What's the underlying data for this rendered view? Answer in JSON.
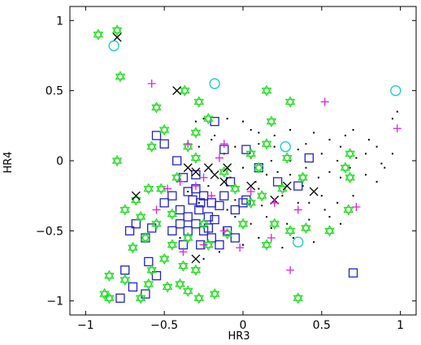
{
  "chart_data": {
    "type": "scatter",
    "title": "",
    "xlabel": "HR3",
    "ylabel": "HR4",
    "xlim": [
      -1.1,
      1.1
    ],
    "ylim": [
      -1.1,
      1.1
    ],
    "x_ticks": [
      -1,
      -0.5,
      0,
      0.5,
      1
    ],
    "x_tick_labels": [
      "−1",
      "−0.5",
      "0",
      "0.5",
      "1"
    ],
    "y_ticks": [
      -1,
      -0.5,
      0,
      0.5,
      1
    ],
    "y_tick_labels": [
      "−1",
      "−0.5",
      "0",
      "0.5",
      "1"
    ],
    "grid": false,
    "legend": "none",
    "series": [
      {
        "marker": "star",
        "color": "#22dd22",
        "points": [
          [
            -0.92,
            0.9
          ],
          [
            -0.8,
            0.93
          ],
          [
            -0.78,
            0.6
          ],
          [
            -0.55,
            0.38
          ],
          [
            -0.37,
            0.5
          ],
          [
            -0.28,
            0.42
          ],
          [
            -0.5,
            0.22
          ],
          [
            -0.3,
            0.2
          ],
          [
            -0.22,
            0.3
          ],
          [
            -0.58,
            0.1
          ],
          [
            -0.35,
            0.1
          ],
          [
            -0.8,
            0.0
          ],
          [
            -0.3,
            0.02
          ],
          [
            -0.42,
            -0.12
          ],
          [
            -0.6,
            -0.2
          ],
          [
            -0.68,
            -0.28
          ],
          [
            -0.52,
            -0.2
          ],
          [
            -0.75,
            -0.35
          ],
          [
            -0.65,
            -0.4
          ],
          [
            -0.45,
            -0.38
          ],
          [
            -0.55,
            -0.45
          ],
          [
            -0.62,
            -0.55
          ],
          [
            -0.7,
            -0.62
          ],
          [
            -0.45,
            -0.6
          ],
          [
            -0.5,
            -0.7
          ],
          [
            -0.38,
            -0.75
          ],
          [
            -0.3,
            -0.78
          ],
          [
            -0.22,
            -0.6
          ],
          [
            -0.85,
            -0.82
          ],
          [
            -0.75,
            -0.85
          ],
          [
            -0.6,
            -0.88
          ],
          [
            -0.48,
            -0.9
          ],
          [
            -0.4,
            -0.88
          ],
          [
            -0.88,
            -0.95
          ],
          [
            -0.85,
            -0.98
          ],
          [
            -0.65,
            -0.98
          ],
          [
            -0.35,
            -0.93
          ],
          [
            -0.28,
            -0.98
          ],
          [
            -0.18,
            -0.95
          ],
          [
            -0.58,
            -0.78
          ],
          [
            -0.35,
            -0.55
          ],
          [
            -0.25,
            -0.45
          ],
          [
            0.15,
            0.5
          ],
          [
            0.3,
            0.42
          ],
          [
            0.18,
            0.28
          ],
          [
            0.15,
            0.12
          ],
          [
            0.1,
            -0.05
          ],
          [
            0.12,
            -0.25
          ],
          [
            0.05,
            -0.3
          ],
          [
            0.25,
            -0.2
          ],
          [
            0.2,
            -0.45
          ],
          [
            0.3,
            -0.5
          ],
          [
            0.38,
            -0.12
          ],
          [
            0.28,
            0.02
          ],
          [
            0.05,
            0.05
          ],
          [
            -0.05,
            -0.2
          ],
          [
            0.68,
            0.05
          ],
          [
            0.68,
            -0.12
          ],
          [
            0.65,
            -0.05
          ],
          [
            0.55,
            -0.5
          ],
          [
            0.67,
            -0.35
          ],
          [
            0.4,
            -0.48
          ],
          [
            0.35,
            -0.98
          ],
          [
            0.0,
            -0.45
          ],
          [
            -0.1,
            -0.52
          ],
          [
            0.15,
            -0.6
          ],
          [
            -0.12,
            -0.08
          ]
        ]
      },
      {
        "marker": "square",
        "color": "#2222cc",
        "points": [
          [
            -0.55,
            0.18
          ],
          [
            -0.5,
            0.12
          ],
          [
            -0.42,
            0.0
          ],
          [
            -0.38,
            -0.12
          ],
          [
            -0.3,
            -0.2
          ],
          [
            -0.25,
            -0.25
          ],
          [
            -0.2,
            -0.3
          ],
          [
            -0.15,
            -0.32
          ],
          [
            -0.28,
            -0.35
          ],
          [
            -0.35,
            -0.4
          ],
          [
            -0.22,
            -0.4
          ],
          [
            -0.18,
            -0.42
          ],
          [
            -0.3,
            -0.45
          ],
          [
            -0.25,
            -0.5
          ],
          [
            -0.35,
            -0.5
          ],
          [
            -0.4,
            -0.45
          ],
          [
            -0.45,
            -0.5
          ],
          [
            -0.2,
            -0.55
          ],
          [
            -0.15,
            -0.6
          ],
          [
            -0.1,
            -0.5
          ],
          [
            -0.05,
            -0.35
          ],
          [
            0.0,
            -0.3
          ],
          [
            -0.08,
            -0.15
          ],
          [
            -0.12,
            0.08
          ],
          [
            0.02,
            0.08
          ],
          [
            0.42,
            0.02
          ],
          [
            0.35,
            -0.18
          ],
          [
            0.22,
            -0.15
          ],
          [
            0.1,
            -0.05
          ],
          [
            -0.58,
            -0.48
          ],
          [
            -0.62,
            -0.55
          ],
          [
            -0.68,
            -0.45
          ],
          [
            -0.72,
            -0.5
          ],
          [
            -0.6,
            -0.72
          ],
          [
            -0.75,
            -0.78
          ],
          [
            -0.55,
            -0.82
          ],
          [
            -0.7,
            -0.9
          ],
          [
            -0.62,
            -0.95
          ],
          [
            -0.78,
            -0.98
          ],
          [
            -0.05,
            -0.55
          ],
          [
            -0.5,
            -0.3
          ],
          [
            -0.4,
            -0.35
          ],
          [
            -0.32,
            -0.28
          ],
          [
            -0.27,
            -0.3
          ],
          [
            -0.12,
            -0.25
          ],
          [
            0.7,
            -0.8
          ],
          [
            -0.27,
            -0.6
          ],
          [
            -0.38,
            -0.6
          ],
          [
            -0.22,
            -0.48
          ],
          [
            -0.45,
            -0.25
          ],
          [
            -0.35,
            -0.22
          ],
          [
            -0.3,
            -0.1
          ],
          [
            0.02,
            -0.28
          ],
          [
            -0.18,
            0.28
          ]
        ]
      },
      {
        "marker": "cross",
        "color": "#000000",
        "points": [
          [
            -0.8,
            0.88
          ],
          [
            -0.42,
            0.5
          ],
          [
            -0.68,
            -0.25
          ],
          [
            -0.35,
            -0.05
          ],
          [
            -0.18,
            -0.1
          ],
          [
            -0.12,
            -0.15
          ],
          [
            0.05,
            -0.18
          ],
          [
            -0.1,
            -0.05
          ],
          [
            0.2,
            -0.28
          ],
          [
            0.28,
            -0.18
          ],
          [
            0.45,
            -0.22
          ],
          [
            -0.3,
            -0.7
          ],
          [
            -0.3,
            -0.08
          ],
          [
            -0.22,
            -0.05
          ]
        ]
      },
      {
        "marker": "plus",
        "color": "#dd22dd",
        "points": [
          [
            -0.58,
            0.55
          ],
          [
            0.52,
            0.42
          ],
          [
            0.98,
            0.23
          ],
          [
            -0.35,
            0.12
          ],
          [
            -0.15,
            0.02
          ],
          [
            -0.25,
            -0.12
          ],
          [
            -0.4,
            -0.15
          ],
          [
            -0.48,
            -0.2
          ],
          [
            -0.55,
            -0.35
          ],
          [
            -0.3,
            -0.18
          ],
          [
            -0.2,
            -0.25
          ],
          [
            0.05,
            -0.22
          ],
          [
            0.2,
            -0.3
          ],
          [
            0.35,
            -0.35
          ],
          [
            0.72,
            -0.33
          ],
          [
            0.18,
            -0.55
          ],
          [
            -0.02,
            -0.62
          ],
          [
            -0.12,
            -0.5
          ],
          [
            -0.25,
            -0.6
          ],
          [
            -0.38,
            -0.65
          ],
          [
            -0.12,
            0.12
          ],
          [
            0.3,
            -0.78
          ]
        ]
      },
      {
        "marker": "circle",
        "color": "#22cccc",
        "points": [
          [
            -0.82,
            0.82
          ],
          [
            -0.18,
            0.55
          ],
          [
            0.27,
            0.1
          ],
          [
            0.35,
            -0.58
          ],
          [
            0.97,
            0.5
          ]
        ]
      },
      {
        "marker": "dot",
        "color": "#000000",
        "points": [
          [
            -0.3,
            0.28
          ],
          [
            -0.25,
            0.3
          ],
          [
            -0.1,
            0.3
          ],
          [
            0.0,
            0.28
          ],
          [
            0.05,
            0.22
          ],
          [
            0.1,
            0.2
          ],
          [
            0.2,
            0.18
          ],
          [
            0.3,
            0.22
          ],
          [
            0.45,
            0.2
          ],
          [
            0.55,
            0.15
          ],
          [
            0.65,
            0.18
          ],
          [
            0.7,
            0.22
          ],
          [
            0.8,
            0.15
          ],
          [
            0.85,
            0.1
          ],
          [
            0.95,
            0.3
          ],
          [
            0.98,
            0.35
          ],
          [
            0.2,
            0.1
          ],
          [
            0.35,
            0.08
          ],
          [
            0.5,
            0.05
          ],
          [
            0.6,
            0.0
          ],
          [
            0.72,
            0.02
          ],
          [
            0.88,
            -0.02
          ],
          [
            0.95,
            0.05
          ],
          [
            0.4,
            -0.05
          ],
          [
            0.55,
            -0.08
          ],
          [
            0.62,
            -0.12
          ],
          [
            0.78,
            -0.1
          ],
          [
            0.85,
            -0.15
          ],
          [
            0.3,
            -0.1
          ],
          [
            0.15,
            -0.1
          ],
          [
            0.0,
            -0.05
          ],
          [
            -0.05,
            0.1
          ],
          [
            -0.2,
            0.15
          ],
          [
            -0.28,
            0.1
          ],
          [
            0.1,
            -0.2
          ],
          [
            0.25,
            -0.25
          ],
          [
            0.35,
            -0.3
          ],
          [
            0.5,
            -0.25
          ],
          [
            0.6,
            -0.3
          ],
          [
            0.7,
            -0.25
          ],
          [
            0.15,
            -0.4
          ],
          [
            0.28,
            -0.45
          ],
          [
            0.42,
            -0.42
          ],
          [
            0.55,
            -0.4
          ],
          [
            0.62,
            -0.45
          ],
          [
            0.05,
            -0.45
          ],
          [
            -0.05,
            -0.4
          ],
          [
            0.0,
            -0.6
          ],
          [
            0.1,
            -0.55
          ],
          [
            0.25,
            -0.62
          ],
          [
            0.45,
            -0.58
          ],
          [
            -0.15,
            -0.65
          ],
          [
            -0.25,
            -0.7
          ],
          [
            -0.4,
            -0.55
          ],
          [
            -0.12,
            0.05
          ],
          [
            -0.22,
            -0.18
          ],
          [
            -0.35,
            -0.22
          ],
          [
            0.05,
            0.02
          ],
          [
            0.18,
            0.0
          ],
          [
            -0.05,
            -0.28
          ],
          [
            0.12,
            -0.32
          ],
          [
            0.38,
            -0.18
          ],
          [
            0.48,
            -0.12
          ],
          [
            0.22,
            -0.08
          ],
          [
            0.32,
            -0.55
          ],
          [
            -0.18,
            0.18
          ],
          [
            0.62,
            0.1
          ],
          [
            0.78,
            0.05
          ],
          [
            0.9,
            -0.05
          ],
          [
            0.4,
            0.12
          ],
          [
            -0.08,
            -0.12
          ],
          [
            0.08,
            -0.15
          ],
          [
            -0.28,
            -0.3
          ],
          [
            -0.1,
            -0.35
          ],
          [
            0.18,
            -0.48
          ],
          [
            0.42,
            -0.3
          ],
          [
            0.52,
            -0.35
          ],
          [
            0.3,
            0.0
          ],
          [
            0.68,
            -0.05
          ],
          [
            0.1,
            0.12
          ]
        ]
      }
    ]
  }
}
